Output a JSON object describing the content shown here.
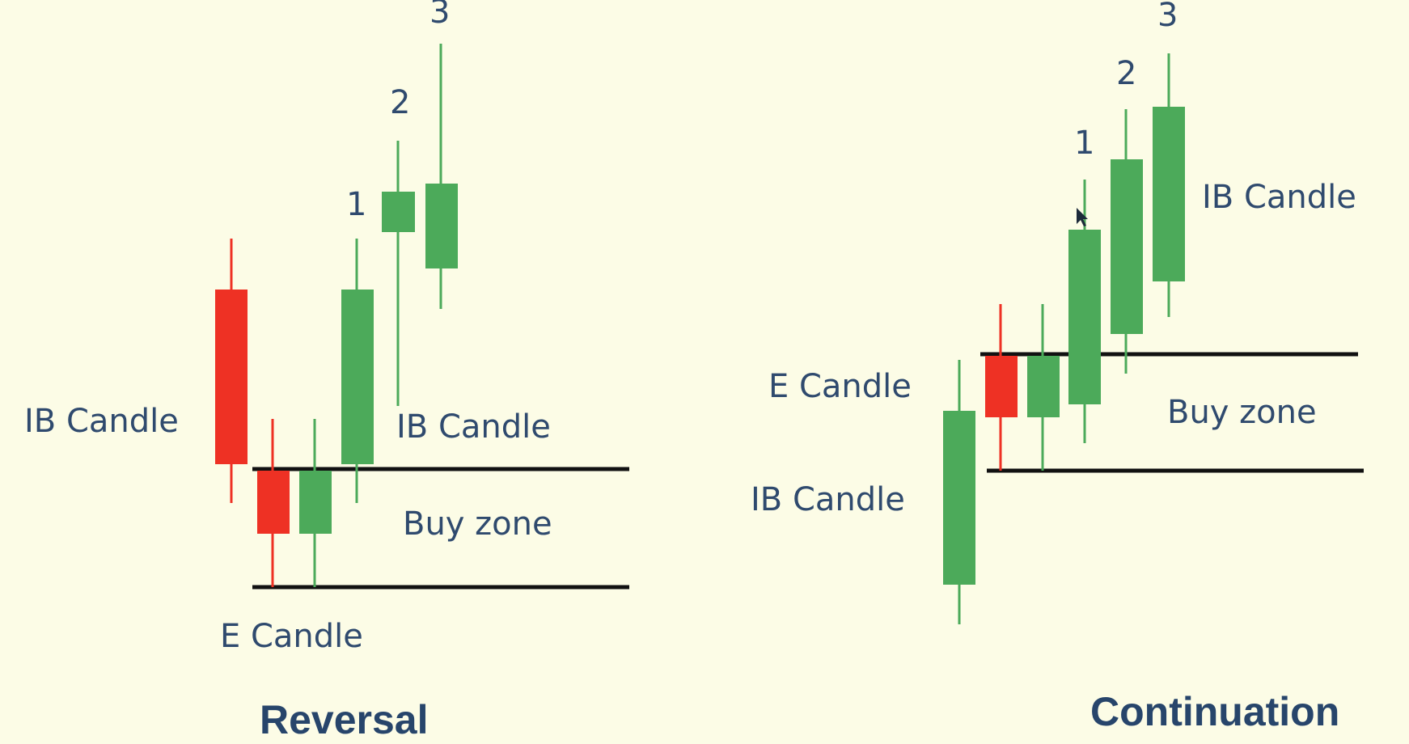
{
  "colors": {
    "background": "#fcfce6",
    "bullish": "#4caa5a",
    "bearish": "#ee3124",
    "zone_line": "#111111",
    "text": "#2f4a6e"
  },
  "panels": {
    "reversal": {
      "title": "Reversal",
      "labels": {
        "ib_candle_left": "IB Candle",
        "ib_candle_right": "IB Candle",
        "e_candle": "E Candle",
        "buy_zone": "Buy zone"
      },
      "numbers": [
        "1",
        "2",
        "3"
      ]
    },
    "continuation": {
      "title": "Continuation",
      "labels": {
        "e_candle": "E Candle",
        "ib_candle_lower": "IB Candle",
        "ib_candle_upper": "IB Candle",
        "buy_zone": "Buy zone"
      },
      "numbers": [
        "1",
        "2",
        "3"
      ]
    }
  }
}
